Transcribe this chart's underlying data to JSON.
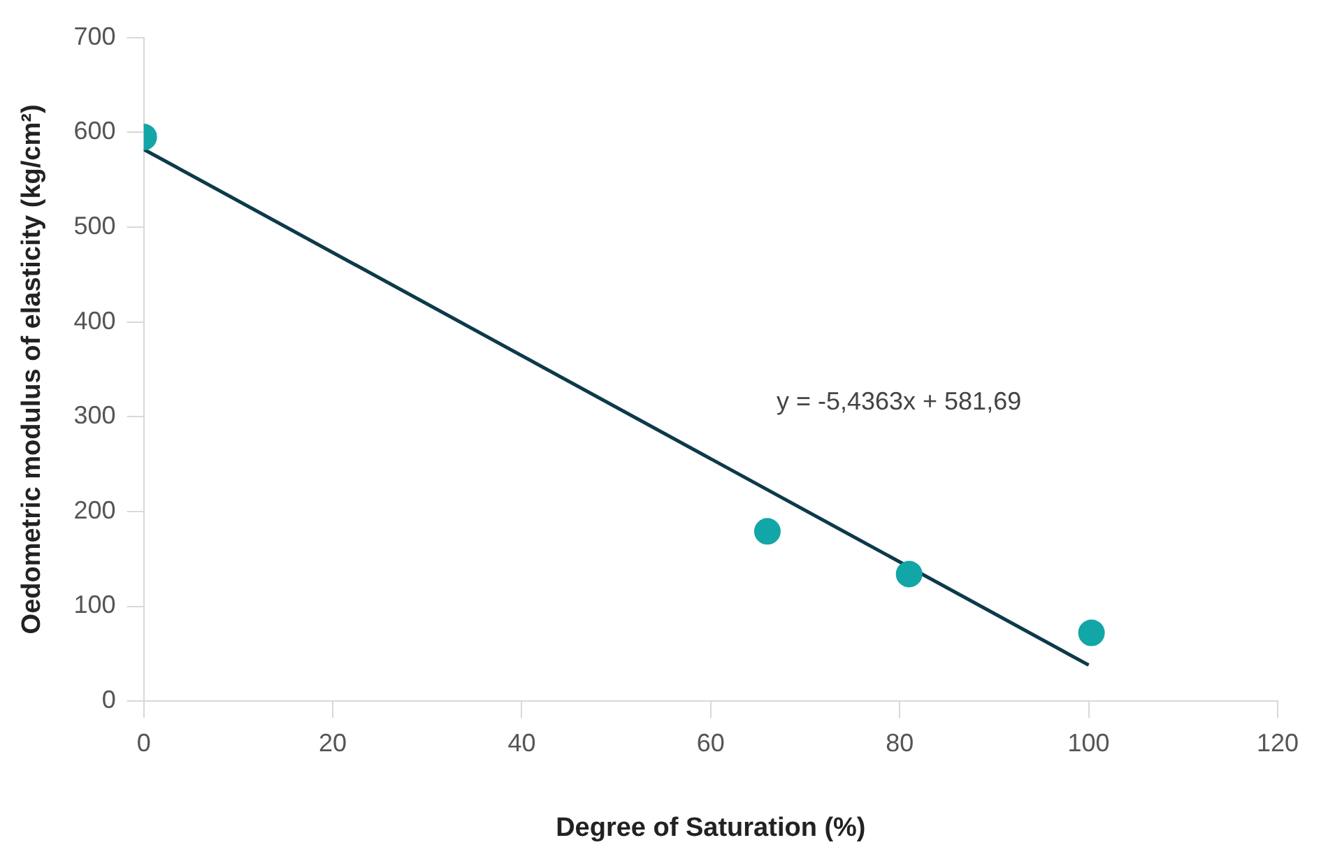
{
  "chart_data": {
    "type": "scatter",
    "xlabel": "Degree of Saturation (%)",
    "ylabel": "Oedometric modulus of elasticity (kg/cm²)",
    "xlim": [
      0,
      120
    ],
    "xticks": [
      0,
      20,
      40,
      60,
      80,
      100,
      120
    ],
    "ylim": [
      0,
      700
    ],
    "yticks": [
      0,
      100,
      200,
      300,
      400,
      500,
      600,
      700
    ],
    "grid": false,
    "legend": false,
    "series": [
      {
        "color": "#13a6a6",
        "marker": "circle",
        "x": [
          0,
          66,
          81,
          100.3
        ],
        "values": [
          595,
          179,
          134,
          72
        ]
      },
      {
        "type": "line",
        "color": "#0d3a4a",
        "marker": "none",
        "line_style": "solid",
        "x": [
          0,
          100
        ],
        "values": [
          582,
          38
        ]
      }
    ],
    "annotations": [
      "y = -5,4363x + 581,69"
    ]
  }
}
